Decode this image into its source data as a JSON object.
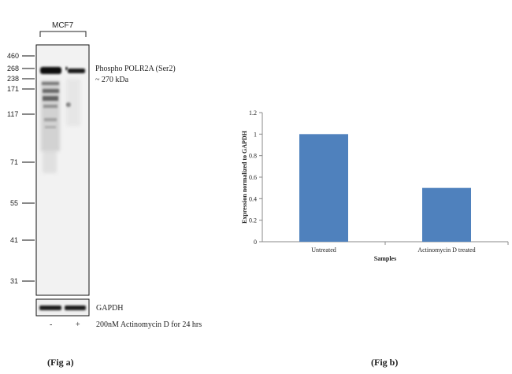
{
  "figure_a": {
    "caption": "(Fig a)",
    "cell_line": "MCF7",
    "markers": [
      "460",
      "268",
      "238",
      "171",
      "117",
      "71",
      "55",
      "41",
      "31"
    ],
    "target_label": "Phospho POLR2A (Ser2)",
    "target_size": "~ 270 kDa",
    "loading_control": "GAPDH",
    "lanes": [
      "-",
      "+"
    ],
    "treatment": "200nM Actinomycin D for 24 hrs"
  },
  "figure_b": {
    "caption": "(Fig b)"
  },
  "chart_data": {
    "type": "bar",
    "categories": [
      "Untreated",
      "Actinomycin D treated"
    ],
    "values": [
      1.0,
      0.5
    ],
    "xlabel": "Samples",
    "ylabel": "Expression normalized to GAPDH",
    "ylim": [
      0,
      1.2
    ],
    "yticks": [
      "0",
      "0.2",
      "0.4",
      "0.6",
      "0.8",
      "1",
      "1.2"
    ],
    "bar_color": "#4f81bd",
    "grid": false
  }
}
